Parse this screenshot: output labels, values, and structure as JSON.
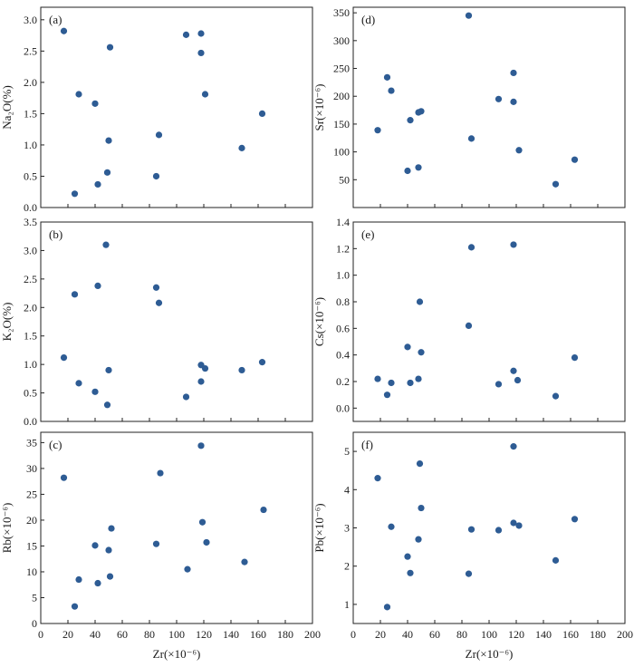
{
  "figure": {
    "point_color": "#2e5c94",
    "axis_color": "#222222"
  },
  "chart_data": [
    {
      "id": "a",
      "type": "scatter",
      "panel_label": "(a)",
      "xlabel": "Zr(×10⁻⁶)",
      "ylabel": "Na₂O(%)",
      "xlim": [
        0,
        200
      ],
      "ylim": [
        0,
        3.2
      ],
      "xticks": [
        "0",
        "20",
        "40",
        "60",
        "80",
        "100",
        "120",
        "140",
        "160",
        "180",
        "200"
      ],
      "yticks": [
        "0.0",
        "0.5",
        "1.0",
        "1.5",
        "2.0",
        "2.5",
        "3.0"
      ],
      "points": [
        {
          "x": 17,
          "y": 2.82
        },
        {
          "x": 25,
          "y": 0.22
        },
        {
          "x": 28,
          "y": 1.81
        },
        {
          "x": 40,
          "y": 1.66
        },
        {
          "x": 42,
          "y": 0.37
        },
        {
          "x": 49,
          "y": 0.56
        },
        {
          "x": 50,
          "y": 1.07
        },
        {
          "x": 51,
          "y": 2.56
        },
        {
          "x": 85,
          "y": 0.5
        },
        {
          "x": 87,
          "y": 1.16
        },
        {
          "x": 107,
          "y": 2.76
        },
        {
          "x": 118,
          "y": 2.78
        },
        {
          "x": 118,
          "y": 2.47
        },
        {
          "x": 121,
          "y": 1.81
        },
        {
          "x": 148,
          "y": 0.95
        },
        {
          "x": 163,
          "y": 1.5
        }
      ]
    },
    {
      "id": "d",
      "type": "scatter",
      "panel_label": "(d)",
      "xlabel": "Zr(×10⁻⁶)",
      "ylabel": "Sr(×10⁻⁶)",
      "xlim": [
        0,
        200
      ],
      "ylim": [
        0,
        360
      ],
      "xticks": [
        "0",
        "20",
        "40",
        "60",
        "80",
        "100",
        "120",
        "140",
        "160",
        "180",
        "200"
      ],
      "yticks": [
        "50",
        "100",
        "150",
        "200",
        "250",
        "300",
        "350"
      ],
      "points": [
        {
          "x": 18,
          "y": 139
        },
        {
          "x": 25,
          "y": 234
        },
        {
          "x": 28,
          "y": 210
        },
        {
          "x": 40,
          "y": 66
        },
        {
          "x": 42,
          "y": 157
        },
        {
          "x": 48,
          "y": 171
        },
        {
          "x": 48,
          "y": 72
        },
        {
          "x": 50,
          "y": 173
        },
        {
          "x": 85,
          "y": 345
        },
        {
          "x": 87,
          "y": 124
        },
        {
          "x": 107,
          "y": 195
        },
        {
          "x": 118,
          "y": 242
        },
        {
          "x": 118,
          "y": 190
        },
        {
          "x": 122,
          "y": 103
        },
        {
          "x": 149,
          "y": 42
        },
        {
          "x": 163,
          "y": 86
        }
      ]
    },
    {
      "id": "b",
      "type": "scatter",
      "panel_label": "(b)",
      "xlabel": "Zr(×10⁻⁶)",
      "ylabel": "K₂O(%)",
      "xlim": [
        0,
        200
      ],
      "ylim": [
        0,
        3.5
      ],
      "xticks": [
        "0",
        "20",
        "40",
        "60",
        "80",
        "100",
        "120",
        "140",
        "160",
        "180",
        "200"
      ],
      "yticks": [
        "0.0",
        "0.5",
        "1.0",
        "1.5",
        "2.0",
        "2.5",
        "3.0",
        "3.5"
      ],
      "points": [
        {
          "x": 17,
          "y": 1.12
        },
        {
          "x": 25,
          "y": 2.23
        },
        {
          "x": 28,
          "y": 0.67
        },
        {
          "x": 40,
          "y": 0.52
        },
        {
          "x": 42,
          "y": 2.38
        },
        {
          "x": 48,
          "y": 3.1
        },
        {
          "x": 49,
          "y": 0.29
        },
        {
          "x": 50,
          "y": 0.9
        },
        {
          "x": 85,
          "y": 2.35
        },
        {
          "x": 87,
          "y": 2.08
        },
        {
          "x": 107,
          "y": 0.43
        },
        {
          "x": 118,
          "y": 0.99
        },
        {
          "x": 118,
          "y": 0.7
        },
        {
          "x": 121,
          "y": 0.93
        },
        {
          "x": 148,
          "y": 0.9
        },
        {
          "x": 163,
          "y": 1.04
        }
      ]
    },
    {
      "id": "e",
      "type": "scatter",
      "panel_label": "(e)",
      "xlabel": "Zr(×10⁻⁶)",
      "ylabel": "Cs(×10⁻⁶)",
      "xlim": [
        0,
        200
      ],
      "ylim": [
        -0.1,
        1.4
      ],
      "xticks": [
        "0",
        "20",
        "40",
        "60",
        "80",
        "100",
        "120",
        "140",
        "160",
        "180",
        "200"
      ],
      "yticks": [
        "0.0",
        "0.2",
        "0.4",
        "0.6",
        "0.8",
        "1.0",
        "1.2",
        "1.4"
      ],
      "points": [
        {
          "x": 18,
          "y": 0.22
        },
        {
          "x": 25,
          "y": 0.1
        },
        {
          "x": 28,
          "y": 0.19
        },
        {
          "x": 40,
          "y": 0.46
        },
        {
          "x": 42,
          "y": 0.19
        },
        {
          "x": 48,
          "y": 0.22
        },
        {
          "x": 49,
          "y": 0.8
        },
        {
          "x": 50,
          "y": 0.42
        },
        {
          "x": 85,
          "y": 0.62
        },
        {
          "x": 87,
          "y": 1.21
        },
        {
          "x": 107,
          "y": 0.18
        },
        {
          "x": 118,
          "y": 1.23
        },
        {
          "x": 118,
          "y": 0.28
        },
        {
          "x": 121,
          "y": 0.21
        },
        {
          "x": 149,
          "y": 0.09
        },
        {
          "x": 163,
          "y": 0.38
        }
      ]
    },
    {
      "id": "c",
      "type": "scatter",
      "panel_label": "(c)",
      "xlabel": "Zr(×10⁻⁶)",
      "ylabel": "Rb(×10⁻⁶)",
      "xlim": [
        0,
        200
      ],
      "ylim": [
        0,
        37
      ],
      "xticks": [
        "0",
        "20",
        "40",
        "60",
        "80",
        "100",
        "120",
        "140",
        "160",
        "180",
        "200"
      ],
      "yticks": [
        "0",
        "5",
        "10",
        "15",
        "20",
        "25",
        "30",
        "35"
      ],
      "points": [
        {
          "x": 17,
          "y": 28.2
        },
        {
          "x": 25,
          "y": 3.3
        },
        {
          "x": 28,
          "y": 8.5
        },
        {
          "x": 40,
          "y": 15.1
        },
        {
          "x": 42,
          "y": 7.8
        },
        {
          "x": 50,
          "y": 14.2
        },
        {
          "x": 51,
          "y": 9.1
        },
        {
          "x": 52,
          "y": 18.4
        },
        {
          "x": 85,
          "y": 15.4
        },
        {
          "x": 88,
          "y": 29.1
        },
        {
          "x": 108,
          "y": 10.5
        },
        {
          "x": 118,
          "y": 34.4
        },
        {
          "x": 119,
          "y": 19.6
        },
        {
          "x": 122,
          "y": 15.7
        },
        {
          "x": 150,
          "y": 11.9
        },
        {
          "x": 164,
          "y": 22.0
        }
      ]
    },
    {
      "id": "f",
      "type": "scatter",
      "panel_label": "(f)",
      "xlabel": "Zr(×10⁻⁶)",
      "ylabel": "Pb(×10⁻⁶)",
      "xlim": [
        0,
        200
      ],
      "ylim": [
        0.5,
        5.5
      ],
      "xticks": [
        "0",
        "20",
        "40",
        "60",
        "80",
        "100",
        "120",
        "140",
        "160",
        "180",
        "200"
      ],
      "yticks": [
        "1",
        "2",
        "3",
        "4",
        "5"
      ],
      "points": [
        {
          "x": 18,
          "y": 4.3
        },
        {
          "x": 25,
          "y": 0.93
        },
        {
          "x": 28,
          "y": 3.03
        },
        {
          "x": 40,
          "y": 2.25
        },
        {
          "x": 42,
          "y": 1.82
        },
        {
          "x": 48,
          "y": 2.7
        },
        {
          "x": 49,
          "y": 4.68
        },
        {
          "x": 50,
          "y": 3.52
        },
        {
          "x": 85,
          "y": 1.8
        },
        {
          "x": 87,
          "y": 2.96
        },
        {
          "x": 107,
          "y": 2.94
        },
        {
          "x": 118,
          "y": 5.13
        },
        {
          "x": 118,
          "y": 3.13
        },
        {
          "x": 122,
          "y": 3.06
        },
        {
          "x": 149,
          "y": 2.15
        },
        {
          "x": 163,
          "y": 3.23
        }
      ]
    }
  ]
}
